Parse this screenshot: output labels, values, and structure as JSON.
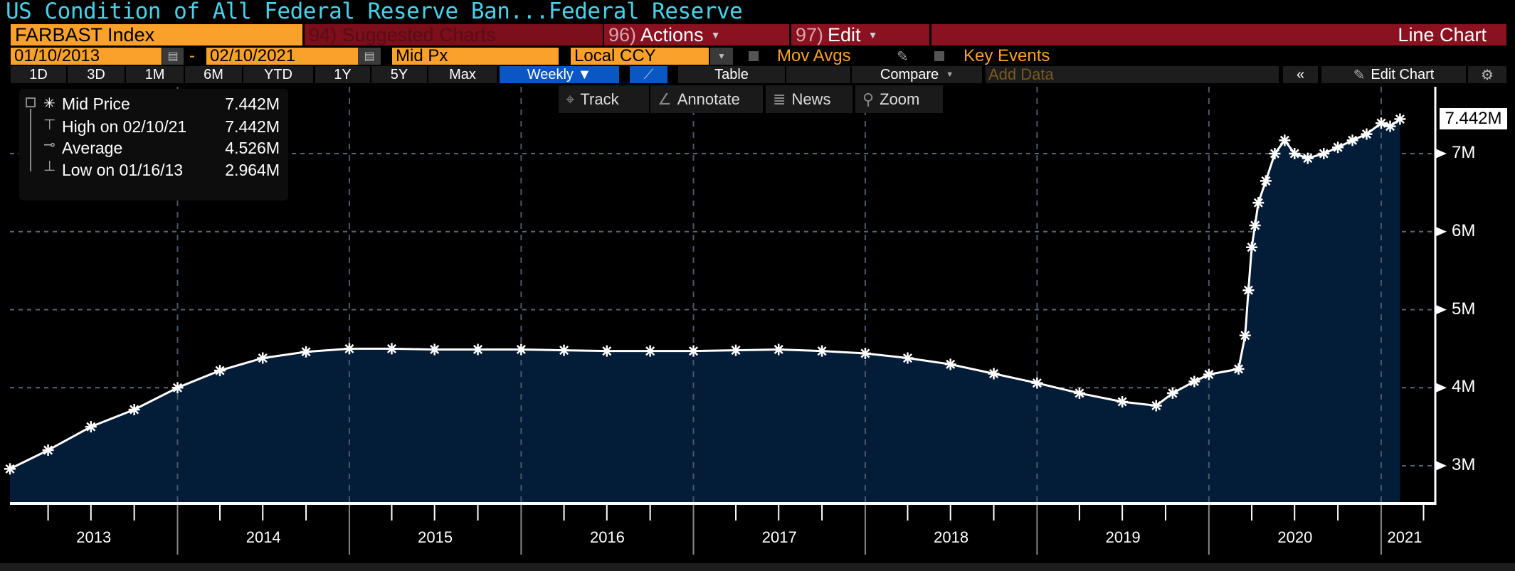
{
  "title": "US Condition of All Federal Reserve Ban...Federal Reserve",
  "header": {
    "ticker": "FARBAST Index",
    "suggested": {
      "num": "94)",
      "label": "Suggested Charts"
    },
    "actions": {
      "num": "96)",
      "label": "Actions"
    },
    "edit": {
      "num": "97)",
      "label": "Edit"
    },
    "chart_type": "Line Chart",
    "start_date": "01/10/2013",
    "date_sep": "-",
    "end_date": "02/10/2021",
    "field": "Mid Px",
    "currency": "Local CCY",
    "mov_avgs": "Mov Avgs",
    "key_events": "Key Events"
  },
  "ranges": [
    "1D",
    "3D",
    "1M",
    "6M",
    "YTD",
    "1Y",
    "5Y",
    "Max"
  ],
  "periodicity": "Weekly ▼",
  "table_label": "Table",
  "compare_label": "Compare",
  "add_data_placeholder": "Add Data",
  "edit_chart_label": "Edit Chart",
  "toolbar": {
    "track": "Track",
    "annotate": "Annotate",
    "news": "News",
    "zoom": "Zoom"
  },
  "legend": [
    {
      "label": "Mid Price",
      "value": "7.442M"
    },
    {
      "label": "High on 02/10/21",
      "value": "7.442M"
    },
    {
      "label": "Average",
      "value": "4.526M"
    },
    {
      "label": "Low on 01/16/13",
      "value": "2.964M"
    }
  ],
  "last_value_label": "7.442M",
  "colors": {
    "accent_orange": "#f9a12a",
    "header_red": "#8a1120",
    "title_cyan": "#45d3ea",
    "area_fill": "#031c38",
    "line": "#ffffff",
    "selected_blue": "#0a56c2"
  },
  "chart_data": {
    "type": "area",
    "title": "US Condition of All Federal Reserve Ban...Federal Reserve",
    "xlabel": "",
    "ylabel": "",
    "x_range": [
      "2013-01-10",
      "2021-02-10"
    ],
    "ylim": [
      2.5,
      7.9
    ],
    "y_unit": "M",
    "y_ticks": [
      {
        "v": 3,
        "label": "3M"
      },
      {
        "v": 4,
        "label": "4M"
      },
      {
        "v": 5,
        "label": "5M"
      },
      {
        "v": 6,
        "label": "6M"
      },
      {
        "v": 7,
        "label": "7M"
      }
    ],
    "x_ticks": [
      "2013",
      "2014",
      "2015",
      "2016",
      "2017",
      "2018",
      "2019",
      "2020",
      "2021"
    ],
    "grid": true,
    "series": [
      {
        "name": "Mid Price",
        "points": [
          [
            "2013-01-10",
            2.96
          ],
          [
            "2013-04-01",
            3.2
          ],
          [
            "2013-07-01",
            3.5
          ],
          [
            "2013-10-01",
            3.72
          ],
          [
            "2014-01-01",
            4.0
          ],
          [
            "2014-04-01",
            4.22
          ],
          [
            "2014-07-01",
            4.38
          ],
          [
            "2014-10-01",
            4.46
          ],
          [
            "2015-01-01",
            4.5
          ],
          [
            "2015-04-01",
            4.5
          ],
          [
            "2015-07-01",
            4.49
          ],
          [
            "2015-10-01",
            4.49
          ],
          [
            "2016-01-01",
            4.49
          ],
          [
            "2016-04-01",
            4.48
          ],
          [
            "2016-07-01",
            4.47
          ],
          [
            "2016-10-01",
            4.47
          ],
          [
            "2017-01-01",
            4.47
          ],
          [
            "2017-04-01",
            4.48
          ],
          [
            "2017-07-01",
            4.49
          ],
          [
            "2017-10-01",
            4.47
          ],
          [
            "2018-01-01",
            4.44
          ],
          [
            "2018-04-01",
            4.38
          ],
          [
            "2018-07-01",
            4.3
          ],
          [
            "2018-10-01",
            4.18
          ],
          [
            "2019-01-01",
            4.06
          ],
          [
            "2019-04-01",
            3.93
          ],
          [
            "2019-07-01",
            3.82
          ],
          [
            "2019-09-11",
            3.77
          ],
          [
            "2019-10-16",
            3.93
          ],
          [
            "2019-12-01",
            4.08
          ],
          [
            "2020-01-01",
            4.17
          ],
          [
            "2020-03-04",
            4.24
          ],
          [
            "2020-03-18",
            4.67
          ],
          [
            "2020-03-25",
            5.25
          ],
          [
            "2020-04-01",
            5.8
          ],
          [
            "2020-04-08",
            6.08
          ],
          [
            "2020-04-15",
            6.37
          ],
          [
            "2020-05-01",
            6.65
          ],
          [
            "2020-05-20",
            7.0
          ],
          [
            "2020-06-10",
            7.17
          ],
          [
            "2020-07-01",
            7.0
          ],
          [
            "2020-07-29",
            6.94
          ],
          [
            "2020-09-01",
            7.0
          ],
          [
            "2020-10-01",
            7.08
          ],
          [
            "2020-11-01",
            7.17
          ],
          [
            "2020-12-01",
            7.25
          ],
          [
            "2021-01-01",
            7.39
          ],
          [
            "2021-01-20",
            7.35
          ],
          [
            "2021-02-10",
            7.442
          ]
        ]
      }
    ]
  }
}
